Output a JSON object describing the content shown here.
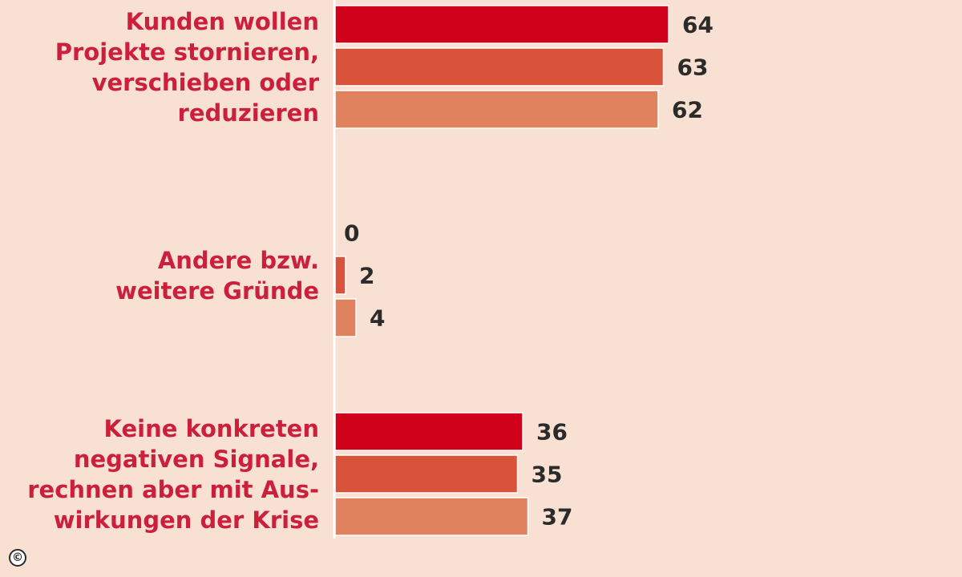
{
  "chart_data": {
    "type": "bar",
    "orientation": "horizontal",
    "categories": [
      "Kunden wollen Projekte stornieren, verschieben oder reduzieren",
      "Andere bzw. weitere Gründe",
      "Keine konkreten negativen Signale, rechnen aber mit Auswirkungen der Krise"
    ],
    "category_lines": [
      [
        "Kunden wollen",
        "Projekte stornieren,",
        "verschieben oder",
        "reduzieren"
      ],
      [
        "Andere bzw.",
        "weitere Gründe"
      ],
      [
        "Keine konkreten",
        "negativen Signale,",
        "rechnen aber mit Aus-",
        "wirkungen der Krise"
      ]
    ],
    "series": [
      {
        "values": [
          64,
          0,
          36
        ],
        "color": "#d0021b"
      },
      {
        "values": [
          63,
          2,
          35
        ],
        "color": "#d9533b"
      },
      {
        "values": [
          62,
          4,
          37
        ],
        "color": "#e0825e"
      }
    ],
    "xlim": [
      0,
      70
    ],
    "grid": false,
    "legend": "none"
  },
  "copyright_symbol": "©",
  "colors": {
    "background": "#f8e1d3",
    "label": "#cc1f3c",
    "value_text": "#2b2b2b",
    "axis": "#ffffff"
  }
}
